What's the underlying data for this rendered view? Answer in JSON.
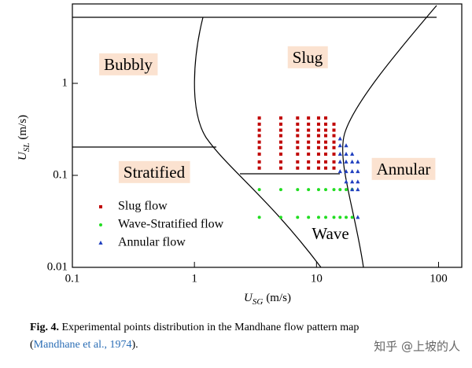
{
  "chart_data": {
    "type": "scatter",
    "xlabel": {
      "symbol": "U",
      "subscript": "SG",
      "unit": "(m/s)"
    },
    "ylabel": {
      "symbol": "U",
      "subscript": "SL",
      "unit": "(m/s)"
    },
    "xscale": "log",
    "yscale": "log",
    "xlim": [
      0.1,
      155
    ],
    "ylim": [
      0.01,
      7.3
    ],
    "xticks": [
      0.1,
      1,
      10,
      100
    ],
    "yticks": [
      0.01,
      0.1,
      1
    ],
    "regions": [
      "Bubbly",
      "Slug",
      "Stratified",
      "Annular",
      "Wave"
    ],
    "legend": "lower left",
    "series": [
      {
        "name": "Slug flow",
        "color": "#c00000",
        "marker": "square",
        "x": [
          3.4,
          3.4,
          3.4,
          3.4,
          3.4,
          3.4,
          3.4,
          3.4,
          3.4,
          5.1,
          5.1,
          5.1,
          5.1,
          5.1,
          5.1,
          5.1,
          5.1,
          5.1,
          7,
          7,
          7,
          7,
          7,
          7,
          7,
          7,
          7,
          8.6,
          8.6,
          8.6,
          8.6,
          8.6,
          8.6,
          8.6,
          8.6,
          8.6,
          10.4,
          10.4,
          10.4,
          10.4,
          10.4,
          10.4,
          10.4,
          10.4,
          10.4,
          11.9,
          11.9,
          11.9,
          11.9,
          11.9,
          11.9,
          11.9,
          11.9,
          11.9,
          13.9,
          13.9,
          13.9,
          13.9,
          13.9,
          13.9,
          13.9,
          13.9
        ],
        "values": [
          0.12,
          0.14,
          0.17,
          0.2,
          0.23,
          0.27,
          0.31,
          0.36,
          0.42,
          0.12,
          0.14,
          0.17,
          0.2,
          0.23,
          0.27,
          0.31,
          0.36,
          0.42,
          0.12,
          0.14,
          0.17,
          0.2,
          0.23,
          0.27,
          0.31,
          0.36,
          0.42,
          0.12,
          0.14,
          0.17,
          0.2,
          0.23,
          0.27,
          0.31,
          0.36,
          0.42,
          0.12,
          0.14,
          0.17,
          0.2,
          0.23,
          0.27,
          0.31,
          0.36,
          0.42,
          0.12,
          0.14,
          0.17,
          0.2,
          0.23,
          0.27,
          0.31,
          0.36,
          0.42,
          0.12,
          0.14,
          0.17,
          0.2,
          0.23,
          0.27,
          0.31,
          0.36
        ]
      },
      {
        "name": "Wave-Stratified flow",
        "color": "#22dd22",
        "marker": "circle",
        "x": [
          3.4,
          5.1,
          7,
          8.6,
          10.4,
          11.9,
          13.9,
          15.6,
          17.5,
          19.6,
          3.4,
          5.1,
          7,
          8.6,
          10.4,
          11.9,
          13.9,
          15.6,
          17.5,
          19.6
        ],
        "values": [
          0.07,
          0.07,
          0.07,
          0.07,
          0.07,
          0.07,
          0.07,
          0.07,
          0.07,
          0.07,
          0.035,
          0.035,
          0.035,
          0.035,
          0.035,
          0.035,
          0.035,
          0.035,
          0.035,
          0.035
        ]
      },
      {
        "name": "Annular flow",
        "color": "#1f3fbf",
        "marker": "triangle",
        "x": [
          15.6,
          15.6,
          15.6,
          15.6,
          15.6,
          17.5,
          17.5,
          17.5,
          17.5,
          17.5,
          19.6,
          19.6,
          19.6,
          19.6,
          19.6,
          21.8,
          21.8,
          21.8,
          21.8,
          21.8
        ],
        "values": [
          0.25,
          0.21,
          0.17,
          0.14,
          0.11,
          0.21,
          0.17,
          0.14,
          0.11,
          0.085,
          0.17,
          0.14,
          0.11,
          0.085,
          0.07,
          0.14,
          0.11,
          0.085,
          0.07,
          0.035
        ]
      }
    ]
  },
  "caption": {
    "label": "Fig. 4.",
    "text": "Experimental points distribution in the Mandhane flow pattern map",
    "open": "(",
    "citation": "Mandhane et al., 1974",
    "close": ")."
  },
  "watermark": "知乎 @上坡的人"
}
